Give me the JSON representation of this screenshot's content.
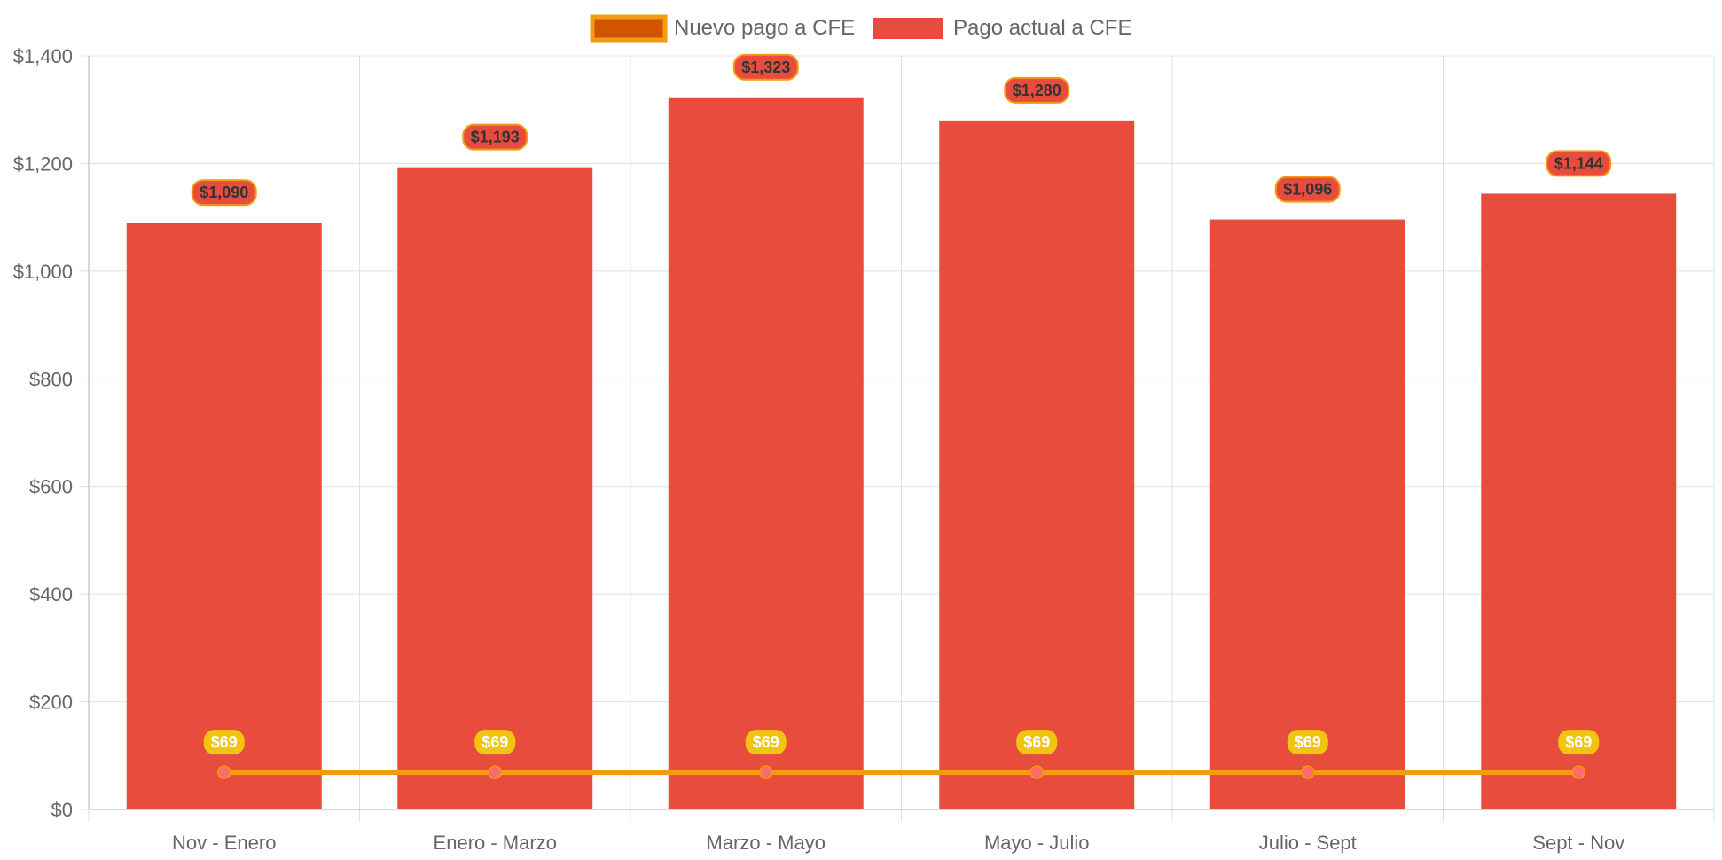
{
  "chart_data": {
    "type": "bar",
    "categories": [
      "Nov - Enero",
      "Enero - Marzo",
      "Marzo - Mayo",
      "Mayo - Julio",
      "Julio - Sept",
      "Sept - Nov"
    ],
    "series": [
      {
        "name": "Nuevo pago a CFE",
        "type": "line",
        "values": [
          69,
          69,
          69,
          69,
          69,
          69
        ],
        "labels": [
          "$69",
          "$69",
          "$69",
          "$69",
          "$69",
          "$69"
        ],
        "color": "#f39c12",
        "legend_fill": "#d35400",
        "point_color": "#ff6b6b",
        "label_bg": "#f1c40f"
      },
      {
        "name": "Pago actual a CFE",
        "type": "bar",
        "values": [
          1090,
          1193,
          1323,
          1280,
          1096,
          1144
        ],
        "labels": [
          "$1,090",
          "$1,193",
          "$1,323",
          "$1,280",
          "$1,096",
          "$1,144"
        ],
        "color": "#e74c3c",
        "label_border": "#f39c12"
      }
    ],
    "ylim": [
      0,
      1400
    ],
    "y_ticks": [
      {
        "value": 0,
        "label": "$0"
      },
      {
        "value": 200,
        "label": "$200"
      },
      {
        "value": 400,
        "label": "$400"
      },
      {
        "value": 600,
        "label": "$600"
      },
      {
        "value": 800,
        "label": "$800"
      },
      {
        "value": 1000,
        "label": "$1,000"
      },
      {
        "value": 1200,
        "label": "$1,200"
      },
      {
        "value": 1400,
        "label": "$1,400"
      }
    ],
    "grid": true,
    "legend_position": "top-center",
    "title": "",
    "xlabel": "",
    "ylabel": ""
  }
}
